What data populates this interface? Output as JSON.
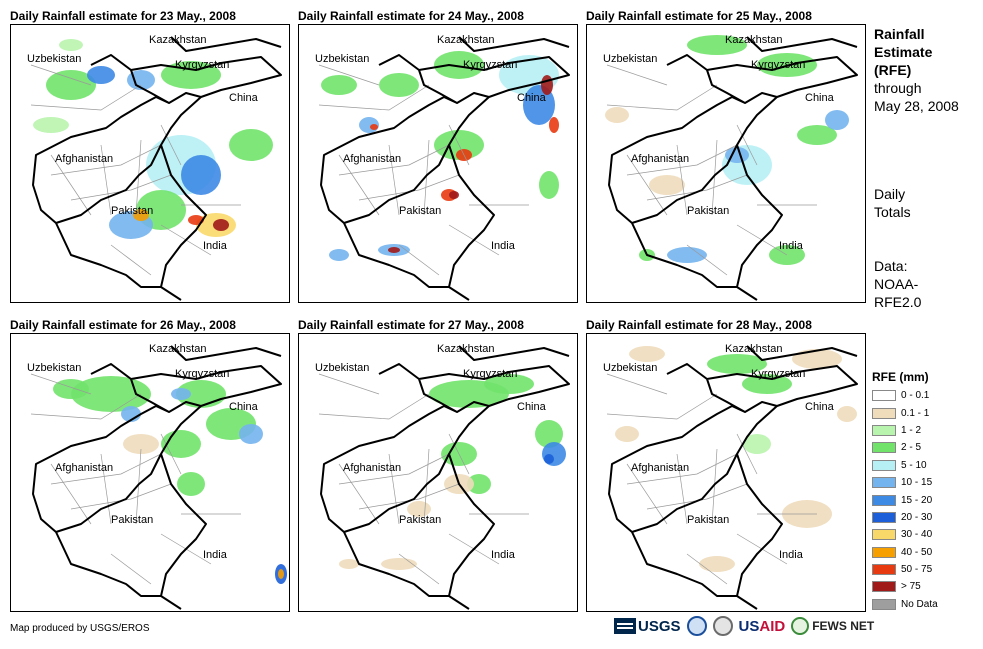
{
  "panels": [
    {
      "title": "Daily Rainfall estimate for 23 May., 2008"
    },
    {
      "title": "Daily Rainfall estimate for 24 May., 2008"
    },
    {
      "title": "Daily Rainfall estimate for 25 May., 2008"
    },
    {
      "title": "Daily Rainfall estimate for 26 May., 2008"
    },
    {
      "title": "Daily Rainfall estimate for 27 May., 2008"
    },
    {
      "title": "Daily Rainfall estimate for 28 May., 2008"
    }
  ],
  "countries": {
    "kazakhstan": "Kazakhstan",
    "uzbekistan": "Uzbekistan",
    "kyrgyzstan": "Kyrgyzstan",
    "china": "China",
    "afghanistan": "Afghanistan",
    "pakistan": "Pakistan",
    "india": "India"
  },
  "side": {
    "title_bold_1": "Rainfall",
    "title_bold_2": "Estimate",
    "title_bold_3": "(RFE)",
    "title_line_4": "through",
    "title_line_5": "May 28, 2008",
    "daily_1": "Daily",
    "daily_2": "Totals",
    "data_1": "Data:",
    "data_2": "NOAA-",
    "data_3": "RFE2.0"
  },
  "legend": {
    "title": "RFE (mm)",
    "items": [
      {
        "label": "0 - 0.1",
        "color": "#ffffff"
      },
      {
        "label": "0.1 - 1",
        "color": "#eedcbb"
      },
      {
        "label": "1 - 2",
        "color": "#b9f4ae"
      },
      {
        "label": "2 - 5",
        "color": "#71e36b"
      },
      {
        "label": "5 - 10",
        "color": "#b6f0f5"
      },
      {
        "label": "10 - 15",
        "color": "#74b4ee"
      },
      {
        "label": "15 - 20",
        "color": "#3d8ae5"
      },
      {
        "label": "20 - 30",
        "color": "#1c5fd8"
      },
      {
        "label": "30 - 40",
        "color": "#f9d86a"
      },
      {
        "label": "40 - 50",
        "color": "#f59f00"
      },
      {
        "label": "50 - 75",
        "color": "#e83a10"
      },
      {
        "label": "> 75",
        "color": "#a01a1a"
      },
      {
        "label": "No Data",
        "color": "#9e9e9e"
      }
    ]
  },
  "footer": {
    "credit": "Map produced by USGS/EROS",
    "usgs": "USGS",
    "usaid_blue": "US",
    "usaid_red": "AID",
    "fews": "FEWS NET"
  }
}
